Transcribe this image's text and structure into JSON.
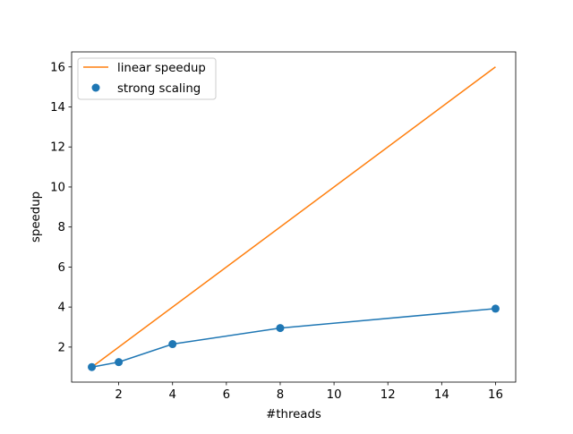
{
  "chart_data": {
    "type": "line",
    "title": "",
    "xlabel": "#threads",
    "ylabel": "speedup",
    "xlim": [
      0.25,
      16.75
    ],
    "ylim": [
      0.25,
      16.75
    ],
    "xticks": [
      2,
      4,
      6,
      8,
      10,
      12,
      14,
      16
    ],
    "yticks": [
      2,
      4,
      6,
      8,
      10,
      12,
      14,
      16
    ],
    "grid": false,
    "legend_position": "top-left",
    "series": [
      {
        "name": "linear speedup",
        "kind": "line",
        "color": "#ff7f0e",
        "x": [
          1,
          16
        ],
        "y": [
          1,
          16
        ]
      },
      {
        "name": "strong scaling",
        "kind": "scatter",
        "color": "#1f77b4",
        "x": [
          1,
          2,
          4,
          8,
          16
        ],
        "y": [
          1.0,
          1.25,
          2.15,
          2.95,
          3.92
        ]
      }
    ]
  }
}
